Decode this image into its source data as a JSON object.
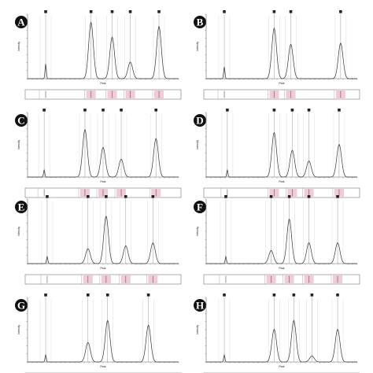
{
  "chart_data": {
    "type": "line",
    "xlabel": "Peak",
    "ylabel": "Intensity",
    "panels": [
      {
        "label": "A",
        "peaks": [
          {
            "x": 0.12,
            "height": 0.25
          },
          {
            "x": 0.42,
            "height": 0.95
          },
          {
            "x": 0.56,
            "height": 0.7
          },
          {
            "x": 0.68,
            "height": 0.28
          },
          {
            "x": 0.87,
            "height": 0.88
          }
        ]
      },
      {
        "label": "B",
        "peaks": [
          {
            "x": 0.12,
            "height": 0.2
          },
          {
            "x": 0.45,
            "height": 0.85
          },
          {
            "x": 0.56,
            "height": 0.58
          },
          {
            "x": 0.89,
            "height": 0.6
          }
        ]
      },
      {
        "label": "C",
        "peaks": [
          {
            "x": 0.11,
            "height": 0.12
          },
          {
            "x": 0.38,
            "height": 0.8
          },
          {
            "x": 0.5,
            "height": 0.5
          },
          {
            "x": 0.62,
            "height": 0.3
          },
          {
            "x": 0.85,
            "height": 0.65
          }
        ]
      },
      {
        "label": "D",
        "peaks": [
          {
            "x": 0.14,
            "height": 0.12
          },
          {
            "x": 0.45,
            "height": 0.75
          },
          {
            "x": 0.57,
            "height": 0.45
          },
          {
            "x": 0.68,
            "height": 0.27
          },
          {
            "x": 0.88,
            "height": 0.55
          }
        ]
      },
      {
        "label": "E",
        "peaks": [
          {
            "x": 0.13,
            "height": 0.12
          },
          {
            "x": 0.4,
            "height": 0.25
          },
          {
            "x": 0.52,
            "height": 0.8
          },
          {
            "x": 0.65,
            "height": 0.3
          },
          {
            "x": 0.83,
            "height": 0.35
          }
        ]
      },
      {
        "label": "F",
        "peaks": [
          {
            "x": 0.13,
            "height": 0.12
          },
          {
            "x": 0.43,
            "height": 0.22
          },
          {
            "x": 0.55,
            "height": 0.75
          },
          {
            "x": 0.68,
            "height": 0.35
          },
          {
            "x": 0.87,
            "height": 0.35
          }
        ]
      },
      {
        "label": "G",
        "peaks": [
          {
            "x": 0.12,
            "height": 0.12
          },
          {
            "x": 0.4,
            "height": 0.33
          },
          {
            "x": 0.53,
            "height": 0.7
          },
          {
            "x": 0.8,
            "height": 0.62
          }
        ]
      },
      {
        "label": "H",
        "peaks": [
          {
            "x": 0.12,
            "height": 0.12
          },
          {
            "x": 0.45,
            "height": 0.55
          },
          {
            "x": 0.58,
            "height": 0.7
          },
          {
            "x": 0.7,
            "height": 0.1
          },
          {
            "x": 0.87,
            "height": 0.55
          }
        ]
      }
    ]
  },
  "colors": {
    "badge": "#111111",
    "line": "#333333",
    "lane_band": "#e8a0b4",
    "axis": "#666666"
  }
}
